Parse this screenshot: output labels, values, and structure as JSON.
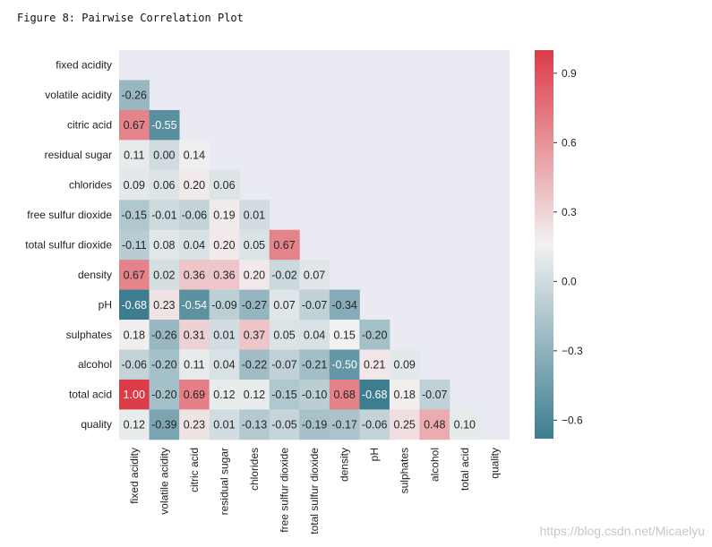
{
  "figure_title": "Figure 8: Pairwise Correlation Plot",
  "watermark": "https://blog.csdn.net/Micaelyu",
  "chart_data": {
    "type": "heatmap",
    "title": "Pairwise Correlation Plot",
    "variables": [
      "fixed acidity",
      "volatile acidity",
      "citric acid",
      "residual sugar",
      "chlorides",
      "free sulfur dioxide",
      "total sulfur dioxide",
      "density",
      "pH",
      "sulphates",
      "alcohol",
      "total acid",
      "quality"
    ],
    "mask": "upper triangle incl. diagonal",
    "matrix_lower": [
      [],
      [
        -0.26
      ],
      [
        0.67,
        -0.55
      ],
      [
        0.11,
        0.0,
        0.14
      ],
      [
        0.09,
        0.06,
        0.2,
        0.06
      ],
      [
        -0.15,
        -0.01,
        -0.06,
        0.19,
        0.01
      ],
      [
        -0.11,
        0.08,
        0.04,
        0.2,
        0.05,
        0.67
      ],
      [
        0.67,
        0.02,
        0.36,
        0.36,
        0.2,
        -0.02,
        0.07
      ],
      [
        -0.68,
        0.23,
        -0.54,
        -0.09,
        -0.27,
        0.07,
        -0.07,
        -0.34
      ],
      [
        0.18,
        -0.26,
        0.31,
        0.01,
        0.37,
        0.05,
        0.04,
        0.15,
        -0.2
      ],
      [
        -0.06,
        -0.2,
        0.11,
        0.04,
        -0.22,
        -0.07,
        -0.21,
        -0.5,
        0.21,
        0.09
      ],
      [
        1.0,
        -0.2,
        0.69,
        0.12,
        0.12,
        -0.15,
        -0.1,
        0.68,
        -0.68,
        0.18,
        -0.07
      ],
      [
        0.12,
        -0.39,
        0.23,
        0.01,
        -0.13,
        -0.05,
        -0.19,
        -0.17,
        -0.06,
        0.25,
        0.48,
        0.1
      ]
    ],
    "value_format": "0.00",
    "colorbar": {
      "range": [
        -0.68,
        1.0
      ],
      "ticks": [
        0.9,
        0.6,
        0.3,
        0.0,
        -0.3,
        -0.6
      ],
      "tick_labels": [
        "0.9",
        "0.6",
        "0.3",
        "0.0",
        "−0.3",
        "−0.6"
      ],
      "colormap": "diverging teal-white-red",
      "colors": {
        "low": "#3d7d90",
        "mid": "#f2f2f2",
        "high": "#dc3b48"
      }
    },
    "background": "#eaeaf2"
  }
}
